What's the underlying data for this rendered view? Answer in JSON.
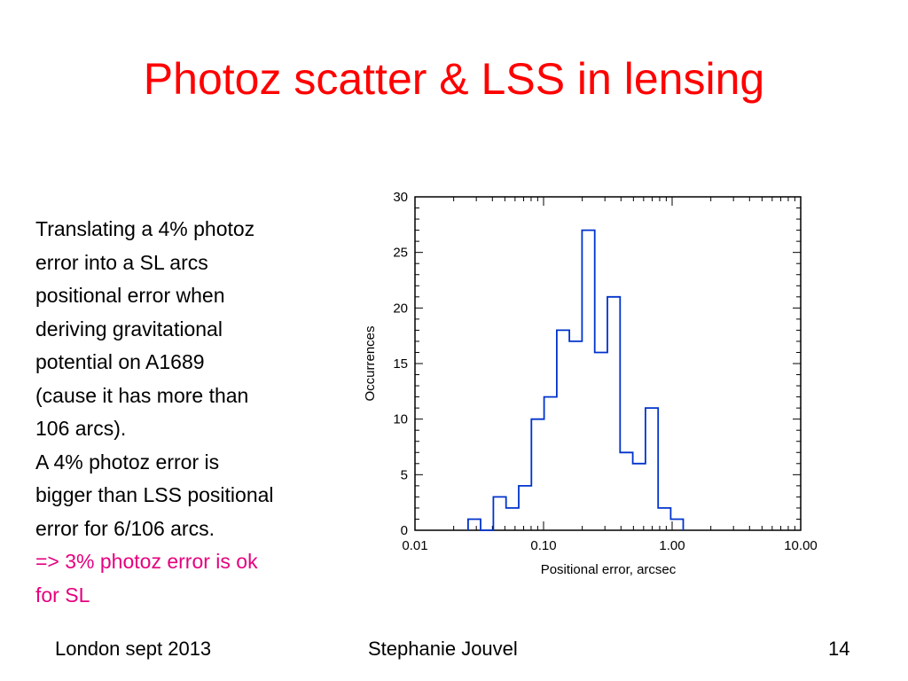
{
  "slide": {
    "title": "Photoz scatter & LSS in lensing",
    "colors": {
      "title": "#ff0000",
      "highlight": "#e6007e",
      "histogram": "#0033cc"
    },
    "body_lines": [
      "Translating a 4% photoz",
      "error into a SL arcs",
      "positional error when",
      "deriving gravitational",
      "potential on A1689",
      "(cause it has more than",
      "106 arcs).",
      "A 4% photoz error is",
      "bigger than LSS positional",
      "error for 6/106 arcs."
    ],
    "highlight_lines": [
      "=> 3% photoz error is ok",
      "for SL"
    ],
    "footer": {
      "left": "London sept 2013",
      "center": "Stephanie Jouvel",
      "right": "14"
    }
  },
  "chart_data": {
    "type": "bar",
    "style": "step-histogram",
    "xscale": "log",
    "xlim": [
      0.01,
      10.0
    ],
    "ylim": [
      0,
      30
    ],
    "xlabel": "Positional error, arcsec",
    "ylabel": "Occurrences",
    "xticks": [
      "0.01",
      "0.10",
      "1.00",
      "10.00"
    ],
    "yticks": [
      "0",
      "5",
      "10",
      "15",
      "20",
      "25",
      "30"
    ],
    "bin_edges": [
      0.0259,
      0.0324,
      0.0407,
      0.0511,
      0.0641,
      0.0804,
      0.1009,
      0.1266,
      0.1588,
      0.1993,
      0.25,
      0.3137,
      0.3937,
      0.4939,
      0.6197,
      0.7775,
      0.9756
    ],
    "values": [
      1,
      0,
      3,
      2,
      4,
      10,
      12,
      18,
      17,
      27,
      16,
      21,
      7,
      6,
      11,
      2,
      1
    ]
  }
}
